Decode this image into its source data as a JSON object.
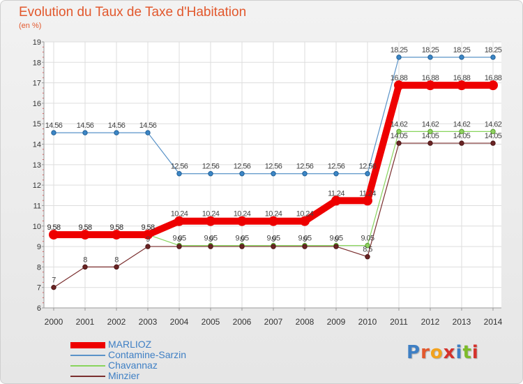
{
  "title": "Evolution du Taux de Taxe d'Habitation",
  "unit_label": "(en %)",
  "logo": {
    "text": "Proxiti",
    "colors": [
      "#3e7fc4",
      "#e2582d",
      "#f2a21e",
      "#d4322c",
      "#3e7fc4",
      "#7dbb2a",
      "#d4322c"
    ]
  },
  "chart_data": {
    "type": "line",
    "title": "Evolution du Taux de Taxe d'Habitation",
    "ylabel": "(en %)",
    "xlabel": "",
    "x": [
      "2000",
      "2001",
      "2002",
      "2003",
      "2004",
      "2005",
      "2006",
      "2007",
      "2008",
      "2009",
      "2010",
      "2011",
      "2012",
      "2013",
      "2014"
    ],
    "ylim": [
      6,
      19
    ],
    "yticks": [
      6,
      7,
      8,
      9,
      10,
      11,
      12,
      13,
      14,
      15,
      16,
      17,
      18,
      19
    ],
    "grid": true,
    "legend_position": "bottom-left",
    "series": [
      {
        "name": "MARLIOZ",
        "color": "#ee0000",
        "values": [
          9.58,
          9.58,
          9.58,
          9.58,
          10.24,
          10.24,
          10.24,
          10.24,
          10.24,
          11.24,
          11.24,
          16.88,
          16.88,
          16.88,
          16.88
        ],
        "labels": [
          "9.58",
          "9.58",
          "9.58",
          "9.58",
          "10.24",
          "10.24",
          "10.24",
          "10.24",
          "10.24",
          "11.24",
          "11.24",
          "16.88",
          "16.88",
          "16.88",
          "16.88"
        ]
      },
      {
        "name": "Contamine-Sarzin",
        "color": "#5a93c8",
        "values": [
          14.56,
          14.56,
          14.56,
          14.56,
          12.56,
          12.56,
          12.56,
          12.56,
          12.56,
          12.56,
          12.56,
          18.25,
          18.25,
          18.25,
          18.25
        ],
        "labels": [
          "14.56",
          "14.56",
          "14.56",
          "14.56",
          "12.56",
          "12.56",
          "12.56",
          "12.56",
          "12.56",
          "12.56",
          "12.56",
          "18.25",
          "18.25",
          "18.25",
          "18.25"
        ]
      },
      {
        "name": "Chavannaz",
        "color": "#88d45c",
        "values": [
          9.58,
          9.58,
          9.58,
          9.58,
          9.05,
          9.05,
          9.05,
          9.05,
          9.05,
          9.05,
          9.05,
          14.62,
          14.62,
          14.62,
          14.62
        ],
        "labels": [
          "9.58",
          "9.58",
          "9.58",
          "9.58",
          "9.05",
          "9.05",
          "9.05",
          "9.05",
          "9.05",
          "9.05",
          "9.05",
          "14.62",
          "14.62",
          "14.62",
          "14.62"
        ]
      },
      {
        "name": "Minzier",
        "color": "#7a2e2e",
        "values": [
          7,
          8,
          8,
          9,
          9,
          9,
          9,
          9,
          9,
          9,
          8.5,
          14.05,
          14.05,
          14.05,
          14.05
        ],
        "labels": [
          "7",
          "8",
          "8",
          "9",
          "9",
          "9",
          "9",
          "9",
          "9",
          "9",
          "8.5",
          "14.05",
          "14.05",
          "14.05",
          "14.05"
        ]
      }
    ]
  }
}
